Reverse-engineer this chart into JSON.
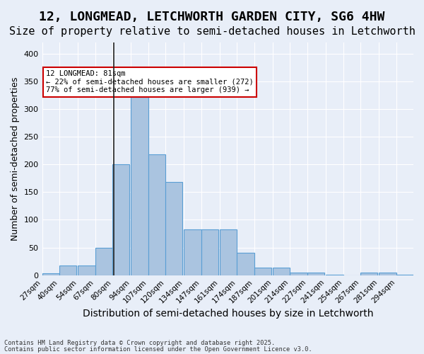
{
  "title1": "12, LONGMEAD, LETCHWORTH GARDEN CITY, SG6 4HW",
  "title2": "Size of property relative to semi-detached houses in Letchworth",
  "xlabel": "Distribution of semi-detached houses by size in Letchworth",
  "ylabel": "Number of semi-detached properties",
  "bins": [
    27,
    40,
    54,
    67,
    80,
    94,
    107,
    120,
    134,
    147,
    161,
    174,
    187,
    201,
    214,
    227,
    241,
    254,
    267,
    281,
    294
  ],
  "counts": [
    4,
    18,
    18,
    50,
    200,
    322,
    218,
    168,
    83,
    83,
    83,
    40,
    14,
    14,
    5,
    5,
    1,
    0,
    5,
    5,
    1
  ],
  "bar_color": "#aac4e0",
  "bar_edge_color": "#5a9fd4",
  "property_size": 81,
  "property_line_color": "#222222",
  "annotation_text": "12 LONGMEAD: 81sqm\n← 22% of semi-detached houses are smaller (272)\n77% of semi-detached houses are larger (939) →",
  "annotation_box_color": "#ffffff",
  "annotation_box_edge_color": "#cc0000",
  "ylim": [
    0,
    420
  ],
  "yticks": [
    0,
    50,
    100,
    150,
    200,
    250,
    300,
    350,
    400
  ],
  "background_color": "#e8eef8",
  "plot_background": "#e8eef8",
  "grid_color": "#ffffff",
  "footer1": "Contains HM Land Registry data © Crown copyright and database right 2025.",
  "footer2": "Contains public sector information licensed under the Open Government Licence v3.0.",
  "title_fontsize": 13,
  "subtitle_fontsize": 11,
  "tick_label_fontsize": 7.5,
  "ylabel_fontsize": 9,
  "xlabel_fontsize": 10
}
